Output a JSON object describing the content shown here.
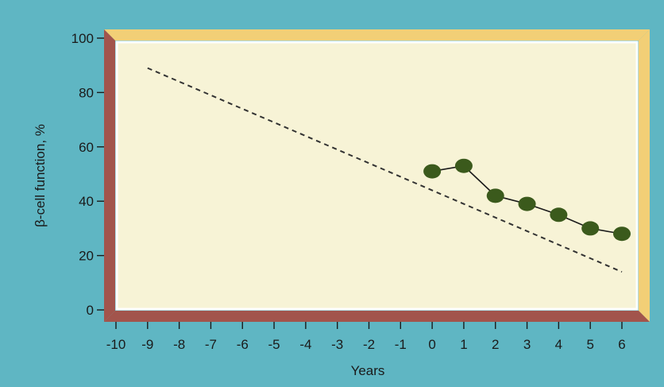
{
  "chart_data": {
    "type": "line",
    "title": "",
    "xlabel": "Years",
    "ylabel": "β-cell function, %",
    "xlim": [
      -10,
      6
    ],
    "ylim": [
      0,
      100
    ],
    "x_ticks": [
      "-10",
      "-9",
      "-8",
      "-7",
      "-6",
      "-5",
      "-4",
      "-3",
      "-2",
      "-1",
      "0",
      "1",
      "2",
      "3",
      "4",
      "5",
      "6"
    ],
    "y_ticks": [
      "0",
      "20",
      "40",
      "60",
      "80",
      "100"
    ],
    "grid": false,
    "legend": "none",
    "series": [
      {
        "style": "dashed",
        "color": "#333333",
        "x": [
          -9,
          6
        ],
        "y": [
          89,
          14
        ]
      },
      {
        "style": "solid-markers",
        "color": "#3b5a1c",
        "x": [
          0,
          1,
          2,
          3,
          4,
          5,
          6
        ],
        "y": [
          51,
          53,
          42,
          39,
          35,
          30,
          28
        ]
      }
    ],
    "colors": {
      "background": "#5fb6c3",
      "plot_face": "#f7f3d6",
      "frame_light": "#f2cf76",
      "frame_dark": "#a2544c",
      "marker": "#3b5a1c"
    }
  }
}
